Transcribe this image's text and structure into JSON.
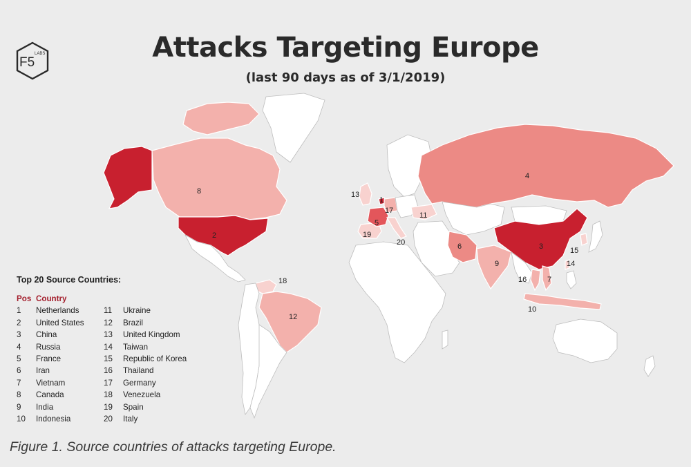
{
  "logo": {
    "main": "F5",
    "sub": "LABS"
  },
  "title": "Attacks Targeting Europe",
  "subtitle": "(last 90 days as of 3/1/2019)",
  "legend": {
    "heading": "Top 20 Source Countries:",
    "pos_header": "Pos",
    "country_header": "Country",
    "rows": [
      {
        "pos": "1",
        "country": "Netherlands",
        "pos2": "11",
        "country2": "Ukraine"
      },
      {
        "pos": "2",
        "country": "United States",
        "pos2": "12",
        "country2": "Brazil"
      },
      {
        "pos": "3",
        "country": "China",
        "pos2": "13",
        "country2": "United Kingdom"
      },
      {
        "pos": "4",
        "country": "Russia",
        "pos2": "14",
        "country2": "Taiwan"
      },
      {
        "pos": "5",
        "country": "France",
        "pos2": "15",
        "country2": "Republic of Korea"
      },
      {
        "pos": "6",
        "country": "Iran",
        "pos2": "16",
        "country2": "Thailand"
      },
      {
        "pos": "7",
        "country": "Vietnam",
        "pos2": "17",
        "country2": "Germany"
      },
      {
        "pos": "8",
        "country": "Canada",
        "pos2": "18",
        "country2": "Venezuela"
      },
      {
        "pos": "9",
        "country": "India",
        "pos2": "19",
        "country2": "Spain"
      },
      {
        "pos": "10",
        "country": "Indonesia",
        "pos2": "20",
        "country2": "Italy"
      }
    ]
  },
  "map_labels": {
    "netherlands": "1",
    "usa": "2",
    "china": "3",
    "russia": "4",
    "france": "5",
    "iran": "6",
    "vietnam": "7",
    "canada": "8",
    "india": "9",
    "indonesia": "10",
    "ukraine": "11",
    "brazil": "12",
    "uk": "13",
    "taiwan": "14",
    "korea": "15",
    "thailand": "16",
    "germany": "17",
    "venezuela": "18",
    "spain": "19",
    "italy": "20"
  },
  "colors": {
    "top": "#c8202f",
    "high": "#e3565b",
    "mid": "#ec8a85",
    "low": "#f3b1ac",
    "lowest": "#f8d2cf",
    "none": "#ffffff",
    "legend_accent": "#a31d2b"
  },
  "caption": "Figure 1. Source countries of attacks targeting Europe."
}
